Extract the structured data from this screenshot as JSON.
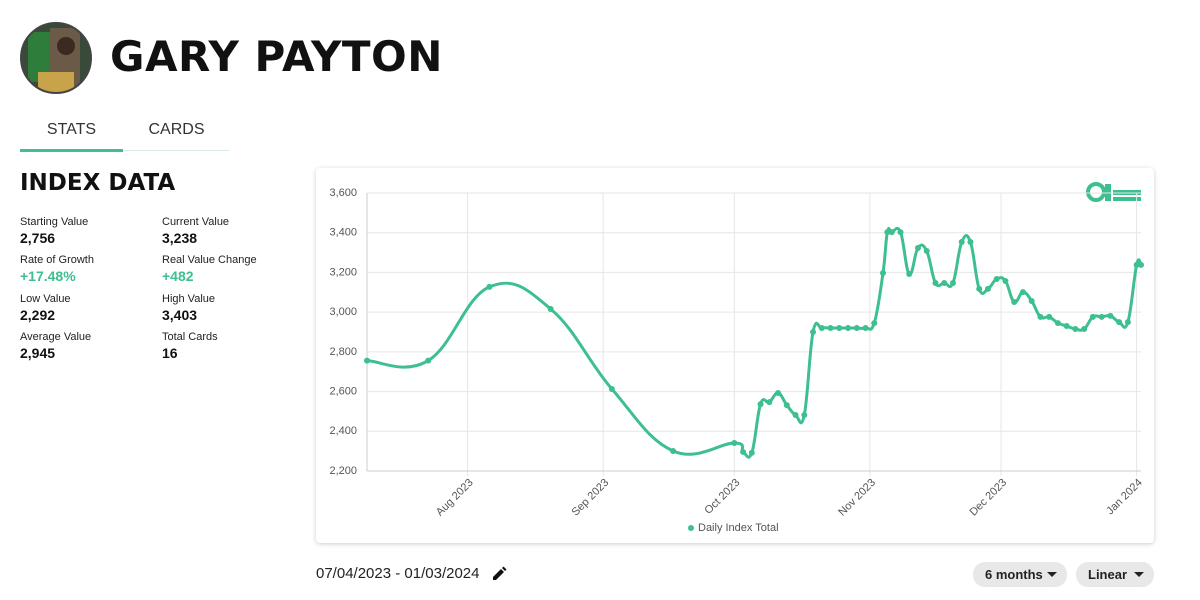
{
  "header": {
    "name": "GARY PAYTON"
  },
  "tabs": [
    "STATS",
    "CARDS"
  ],
  "index_data": {
    "title": "INDEX DATA",
    "stats": [
      {
        "label": "Starting Value",
        "value": "2,756"
      },
      {
        "label": "Current Value",
        "value": "3,238"
      },
      {
        "label": "Rate of Growth",
        "value": "+17.48%"
      },
      {
        "label": "Real Value Change",
        "value": "+482"
      },
      {
        "label": "Low Value",
        "value": "2,292"
      },
      {
        "label": "High Value",
        "value": "3,403"
      },
      {
        "label": "Average Value",
        "value": "2,945"
      },
      {
        "label": "Total Cards",
        "value": "16"
      }
    ]
  },
  "chart_data": {
    "type": "line",
    "x": [
      "2023-07-09",
      "2023-07-23",
      "2023-08-06",
      "2023-08-20",
      "2023-09-03",
      "2023-09-17",
      "2023-10-01",
      "2023-10-03",
      "2023-10-05",
      "2023-10-07",
      "2023-10-09",
      "2023-10-11",
      "2023-10-13",
      "2023-10-15",
      "2023-10-17",
      "2023-10-19",
      "2023-10-21",
      "2023-10-23",
      "2023-10-25",
      "2023-10-27",
      "2023-10-29",
      "2023-10-31",
      "2023-11-02",
      "2023-11-04",
      "2023-11-05",
      "2023-11-06",
      "2023-11-08",
      "2023-11-10",
      "2023-11-12",
      "2023-11-14",
      "2023-11-16",
      "2023-11-18",
      "2023-11-20",
      "2023-11-22",
      "2023-11-24",
      "2023-11-26",
      "2023-11-28",
      "2023-11-30",
      "2023-12-02",
      "2023-12-04",
      "2023-12-06",
      "2023-12-08",
      "2023-12-10",
      "2023-12-12",
      "2023-12-14",
      "2023-12-16",
      "2023-12-18",
      "2023-12-20",
      "2023-12-22",
      "2023-12-24",
      "2023-12-26",
      "2023-12-28",
      "2023-12-30",
      "2024-01-01",
      "2024-01-02"
    ],
    "series": [
      {
        "name": "Daily Index Total",
        "color": "#3dbf8f",
        "values": [
          2756,
          2756,
          3127,
          3016,
          2613,
          2301,
          2341,
          2296,
          2292,
          2537,
          2547,
          2593,
          2532,
          2482,
          2482,
          2900,
          2920,
          2920,
          2920,
          2920,
          2920,
          2920,
          2945,
          3197,
          3403,
          3403,
          3403,
          3192,
          3323,
          3308,
          3147,
          3147,
          3147,
          3353,
          3353,
          3117,
          3117,
          3167,
          3157,
          3051,
          3101,
          3056,
          2976,
          2976,
          2945,
          2930,
          2915,
          2915,
          2976,
          2976,
          2981,
          2950,
          2950,
          3238,
          3238
        ]
      }
    ],
    "xlim": [
      "2023-07-09",
      "2024-01-02"
    ],
    "xticks": [
      {
        "value": "2023-08-01",
        "label": "Aug 2023"
      },
      {
        "value": "2023-09-01",
        "label": "Sep 2023"
      },
      {
        "value": "2023-10-01",
        "label": "Oct 2023"
      },
      {
        "value": "2023-11-01",
        "label": "Nov 2023"
      },
      {
        "value": "2023-12-01",
        "label": "Dec 2023"
      },
      {
        "value": "2024-01-01",
        "label": "Jan 2024"
      }
    ],
    "ylim": [
      2200,
      3600
    ],
    "yticks": [
      {
        "value": 2200,
        "label": "2,200"
      },
      {
        "value": 2400,
        "label": "2,400"
      },
      {
        "value": 2600,
        "label": "2,600"
      },
      {
        "value": 2800,
        "label": "2,800"
      },
      {
        "value": 3000,
        "label": "3,000"
      },
      {
        "value": 3200,
        "label": "3,200"
      },
      {
        "value": 3400,
        "label": "3,400"
      },
      {
        "value": 3600,
        "label": "3,600"
      }
    ],
    "grid": true
  },
  "date_range": "07/04/2023 - 01/03/2024",
  "controls": {
    "period": "6 months",
    "scale": "Linear"
  }
}
